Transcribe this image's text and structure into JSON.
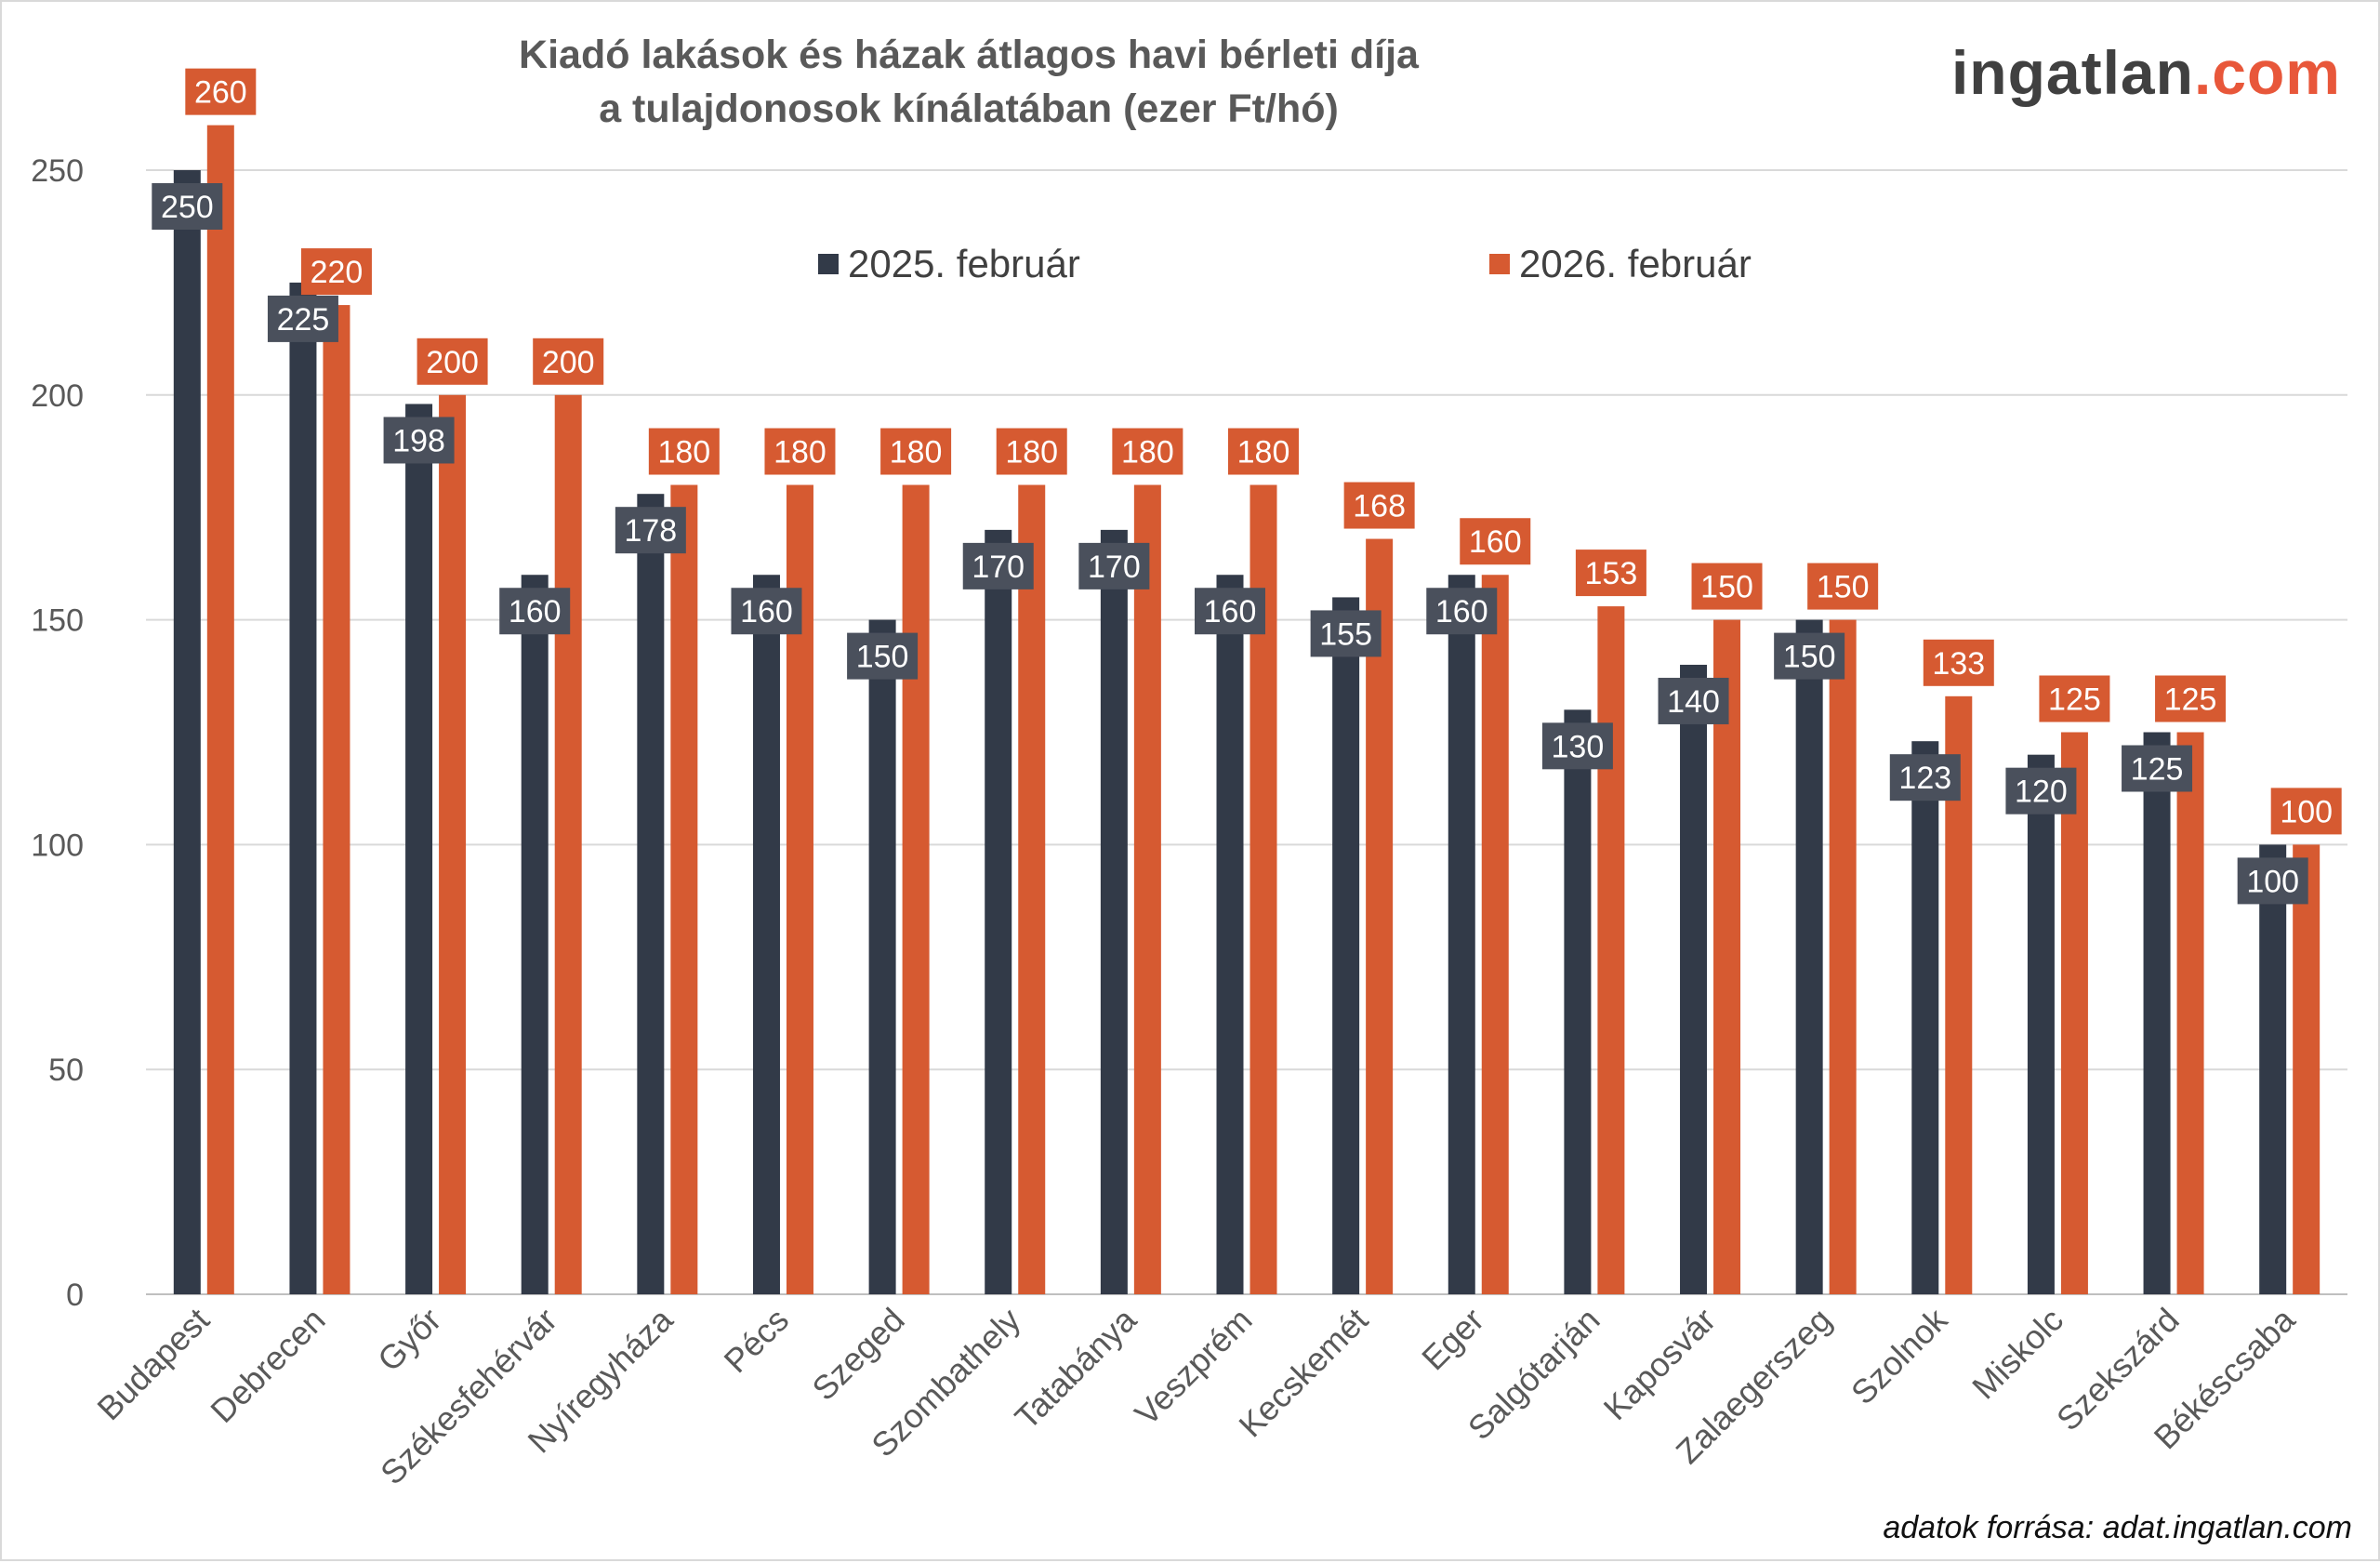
{
  "chart_data": {
    "type": "bar",
    "title": "Kiadó lakások és házak átlagos havi bérleti díja",
    "subtitle": "a tulajdonosok kínálatában (ezer Ft/hó)",
    "categories": [
      "Budapest",
      "Debrecen",
      "Győr",
      "Székesfehérvár",
      "Nyíregyháza",
      "Pécs",
      "Szeged",
      "Szombathely",
      "Tatabánya",
      "Veszprém",
      "Kecskemét",
      "Eger",
      "Salgótarján",
      "Kaposvár",
      "Zalaegerszeg",
      "Szolnok",
      "Miskolc",
      "Szekszárd",
      "Békéscsaba"
    ],
    "series": [
      {
        "name": "2025. február",
        "color": "#323a48",
        "values": [
          250,
          225,
          198,
          160,
          178,
          160,
          150,
          170,
          170,
          160,
          155,
          160,
          130,
          140,
          150,
          123,
          120,
          125,
          100
        ]
      },
      {
        "name": "2026. február",
        "color": "#d65a31",
        "values": [
          260,
          220,
          200,
          200,
          180,
          180,
          180,
          180,
          180,
          180,
          168,
          160,
          153,
          150,
          150,
          133,
          125,
          125,
          100
        ]
      }
    ],
    "ylim": [
      0,
      260
    ],
    "yticks": [
      0,
      50,
      100,
      150,
      200,
      250
    ],
    "grid": true,
    "legend_position": "top-center",
    "xlabel": "",
    "ylabel": ""
  },
  "logo": {
    "main": "ingatlan",
    "suffix": ".com"
  },
  "source": "adatok forrása: adat.ingatlan.com"
}
